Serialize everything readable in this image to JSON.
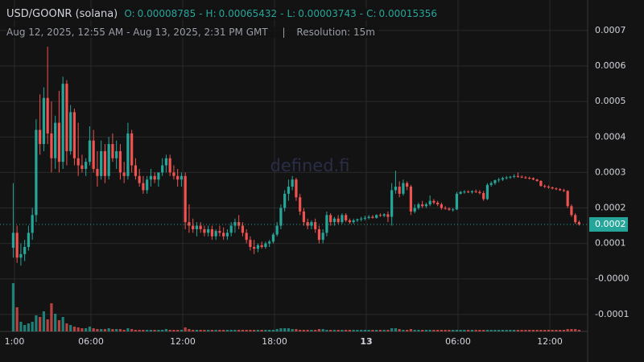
{
  "chart_data": {
    "type": "candlestick",
    "title": "USD/GOONR (solana)",
    "summary": [
      {
        "label": "O:",
        "value": 8.785e-05
      },
      {
        "label": "H:",
        "value": 0.00065432
      },
      {
        "label": "L:",
        "value": 3.743e-05
      },
      {
        "label": "C:",
        "value": 0.00015356
      }
    ],
    "summary_separator": "-",
    "subtitle": "Aug 12, 2025, 12:55 AM - Aug 13, 2025, 2:31 PM GMT",
    "subtitle_separator": "|",
    "resolution": "Resolution: 15m",
    "watermark": "defined.fi",
    "up_color": "#26a69a",
    "down_color": "#ef5350",
    "grid": true,
    "ylim": [
      -0.000148,
      0.000786
    ],
    "yticks": [
      0.0007,
      0.0006,
      0.0005,
      0.0004,
      0.0003,
      0.0002,
      0.0001,
      {
        "value": 0,
        "label": "-0.0000"
      },
      -0.0001
    ],
    "xticks": [
      {
        "value": "2025-08-12T01:00",
        "label": "1:00"
      },
      {
        "value": "2025-08-12T06:00",
        "label": "06:00"
      },
      {
        "value": "2025-08-12T12:00",
        "label": "12:00"
      },
      {
        "value": "2025-08-12T18:00",
        "label": "18:00"
      },
      {
        "value": "2025-08-13T00:00",
        "label": "13"
      },
      {
        "value": "2025-08-13T06:00",
        "label": "06:00"
      },
      {
        "value": "2025-08-13T12:00",
        "label": "12:00"
      }
    ],
    "last_price": {
      "value": 0.00015356,
      "label": "0.0002"
    },
    "x": [
      "2025-08-12T00:55",
      "2025-08-12T01:10",
      "2025-08-12T01:25",
      "2025-08-12T01:40",
      "2025-08-12T01:55",
      "2025-08-12T02:10",
      "2025-08-12T02:25",
      "2025-08-12T02:40",
      "2025-08-12T02:55",
      "2025-08-12T03:10",
      "2025-08-12T03:25",
      "2025-08-12T03:40",
      "2025-08-12T03:55",
      "2025-08-12T04:10",
      "2025-08-12T04:25",
      "2025-08-12T04:40",
      "2025-08-12T04:55",
      "2025-08-12T05:10",
      "2025-08-12T05:25",
      "2025-08-12T05:40",
      "2025-08-12T05:55",
      "2025-08-12T06:10",
      "2025-08-12T06:25",
      "2025-08-12T06:40",
      "2025-08-12T06:55",
      "2025-08-12T07:10",
      "2025-08-12T07:25",
      "2025-08-12T07:40",
      "2025-08-12T07:55",
      "2025-08-12T08:10",
      "2025-08-12T08:25",
      "2025-08-12T08:40",
      "2025-08-12T08:55",
      "2025-08-12T09:10",
      "2025-08-12T09:25",
      "2025-08-12T09:40",
      "2025-08-12T09:55",
      "2025-08-12T10:10",
      "2025-08-12T10:25",
      "2025-08-12T10:40",
      "2025-08-12T10:55",
      "2025-08-12T11:10",
      "2025-08-12T11:25",
      "2025-08-12T11:40",
      "2025-08-12T11:55",
      "2025-08-12T12:10",
      "2025-08-12T12:25",
      "2025-08-12T12:40",
      "2025-08-12T12:55",
      "2025-08-12T13:10",
      "2025-08-12T13:25",
      "2025-08-12T13:40",
      "2025-08-12T13:55",
      "2025-08-12T14:10",
      "2025-08-12T14:25",
      "2025-08-12T14:40",
      "2025-08-12T14:55",
      "2025-08-12T15:10",
      "2025-08-12T15:25",
      "2025-08-12T15:40",
      "2025-08-12T15:55",
      "2025-08-12T16:10",
      "2025-08-12T16:25",
      "2025-08-12T16:40",
      "2025-08-12T16:55",
      "2025-08-12T17:10",
      "2025-08-12T17:25",
      "2025-08-12T17:40",
      "2025-08-12T17:55",
      "2025-08-12T18:10",
      "2025-08-12T18:25",
      "2025-08-12T18:40",
      "2025-08-12T18:55",
      "2025-08-12T19:10",
      "2025-08-12T19:25",
      "2025-08-12T19:40",
      "2025-08-12T19:55",
      "2025-08-12T20:10",
      "2025-08-12T20:25",
      "2025-08-12T20:40",
      "2025-08-12T20:55",
      "2025-08-12T21:10",
      "2025-08-12T21:25",
      "2025-08-12T21:40",
      "2025-08-12T21:55",
      "2025-08-12T22:10",
      "2025-08-12T22:25",
      "2025-08-12T22:40",
      "2025-08-12T22:55",
      "2025-08-12T23:10",
      "2025-08-12T23:25",
      "2025-08-12T23:40",
      "2025-08-12T23:55",
      "2025-08-13T00:10",
      "2025-08-13T00:25",
      "2025-08-13T00:40",
      "2025-08-13T00:55",
      "2025-08-13T01:10",
      "2025-08-13T01:25",
      "2025-08-13T01:40",
      "2025-08-13T01:55",
      "2025-08-13T02:10",
      "2025-08-13T02:25",
      "2025-08-13T02:40",
      "2025-08-13T02:55",
      "2025-08-13T03:10",
      "2025-08-13T03:25",
      "2025-08-13T03:40",
      "2025-08-13T03:55",
      "2025-08-13T04:10",
      "2025-08-13T04:25",
      "2025-08-13T04:40",
      "2025-08-13T04:55",
      "2025-08-13T05:10",
      "2025-08-13T05:25",
      "2025-08-13T05:40",
      "2025-08-13T05:55",
      "2025-08-13T06:10",
      "2025-08-13T06:25",
      "2025-08-13T06:40",
      "2025-08-13T06:55",
      "2025-08-13T07:10",
      "2025-08-13T07:25",
      "2025-08-13T07:40",
      "2025-08-13T07:55",
      "2025-08-13T08:10",
      "2025-08-13T08:25",
      "2025-08-13T08:40",
      "2025-08-13T08:55",
      "2025-08-13T09:10",
      "2025-08-13T09:25",
      "2025-08-13T09:40",
      "2025-08-13T09:55",
      "2025-08-13T10:10",
      "2025-08-13T10:25",
      "2025-08-13T10:40",
      "2025-08-13T10:55",
      "2025-08-13T11:10",
      "2025-08-13T11:25",
      "2025-08-13T11:40",
      "2025-08-13T11:55",
      "2025-08-13T12:10",
      "2025-08-13T12:25",
      "2025-08-13T12:40",
      "2025-08-13T12:55",
      "2025-08-13T13:10",
      "2025-08-13T13:25",
      "2025-08-13T13:40",
      "2025-08-13T13:55"
    ],
    "candles": [
      [
        8.785e-05,
        0.00027,
        6e-05,
        0.00013
      ],
      [
        0.00013,
        0.00015,
        4.5e-05,
        6e-05
      ],
      [
        6e-05,
        0.0001,
        3.743e-05,
        7e-05
      ],
      [
        7e-05,
        0.00011,
        5e-05,
        9e-05
      ],
      [
        9e-05,
        0.00015,
        8e-05,
        0.00013
      ],
      [
        0.00013,
        0.0002,
        0.00011,
        0.00018
      ],
      [
        0.00018,
        0.00045,
        0.00016,
        0.00042
      ],
      [
        0.00042,
        0.00052,
        0.00035,
        0.00038
      ],
      [
        0.00038,
        0.00054,
        0.00036,
        0.00051
      ],
      [
        0.00051,
        0.00065432,
        0.00038,
        0.00041
      ],
      [
        0.00041,
        0.0005,
        0.0003,
        0.00034
      ],
      [
        0.00034,
        0.00046,
        0.00031,
        0.00044
      ],
      [
        0.00044,
        0.00053,
        0.0003,
        0.00033
      ],
      [
        0.00033,
        0.00057,
        0.00031,
        0.00055
      ],
      [
        0.00055,
        0.00056,
        0.00032,
        0.00036
      ],
      [
        0.00036,
        0.00049,
        0.00035,
        0.00047
      ],
      [
        0.00047,
        0.00048,
        0.00032,
        0.00034
      ],
      [
        0.00034,
        0.00044,
        0.00029,
        0.00032
      ],
      [
        0.00032,
        0.00035,
        0.0003,
        0.00031
      ],
      [
        0.00031,
        0.00034,
        0.00029,
        0.00033
      ],
      [
        0.00033,
        0.00043,
        0.00032,
        0.00039
      ],
      [
        0.00039,
        0.00042,
        0.0003,
        0.00031
      ],
      [
        0.00031,
        0.00036,
        0.00026,
        0.00029
      ],
      [
        0.00029,
        0.00039,
        0.00028,
        0.00036
      ],
      [
        0.00036,
        0.00038,
        0.00027,
        0.00029
      ],
      [
        0.00029,
        0.0004,
        0.00028,
        0.00038
      ],
      [
        0.00038,
        0.00041,
        0.00033,
        0.00034
      ],
      [
        0.00034,
        0.00039,
        0.00031,
        0.00036
      ],
      [
        0.00036,
        0.00038,
        0.00028,
        0.0003
      ],
      [
        0.0003,
        0.00033,
        0.00027,
        0.00029
      ],
      [
        0.00029,
        0.00044,
        0.00028,
        0.00041
      ],
      [
        0.00041,
        0.00042,
        0.0003,
        0.00032
      ],
      [
        0.00032,
        0.00034,
        0.00028,
        0.00029
      ],
      [
        0.00029,
        0.00031,
        0.00026,
        0.00027
      ],
      [
        0.00027,
        0.00029,
        0.00024,
        0.00025
      ],
      [
        0.00025,
        0.00029,
        0.00024,
        0.00028
      ],
      [
        0.00028,
        0.00031,
        0.00026,
        0.00029
      ],
      [
        0.00029,
        0.0003,
        0.00027,
        0.00028
      ],
      [
        0.00028,
        0.0003,
        0.00026,
        0.0003
      ],
      [
        0.0003,
        0.00034,
        0.00029,
        0.00032
      ],
      [
        0.00032,
        0.00035,
        0.0003,
        0.00034
      ],
      [
        0.00034,
        0.00035,
        0.00029,
        0.0003
      ],
      [
        0.0003,
        0.00032,
        0.00028,
        0.00029
      ],
      [
        0.00029,
        0.00031,
        0.00026,
        0.00028
      ],
      [
        0.00028,
        0.0003,
        0.00026,
        0.00029
      ],
      [
        0.00029,
        0.0003,
        0.00014,
        0.00016
      ],
      [
        0.00016,
        0.00021,
        0.00013,
        0.00015
      ],
      [
        0.00015,
        0.00017,
        0.00013,
        0.00014
      ],
      [
        0.00014,
        0.00016,
        0.00012,
        0.00015
      ],
      [
        0.00015,
        0.00016,
        0.00013,
        0.00014
      ],
      [
        0.00014,
        0.00015,
        0.00012,
        0.00013
      ],
      [
        0.00013,
        0.00015,
        0.00012,
        0.00014
      ],
      [
        0.00014,
        0.00015,
        0.00011,
        0.00012
      ],
      [
        0.00012,
        0.00014,
        0.00011,
        0.000135
      ],
      [
        0.000135,
        0.00015,
        0.00012,
        0.00013
      ],
      [
        0.00013,
        0.000145,
        0.00011,
        0.00012
      ],
      [
        0.00012,
        0.00014,
        0.00011,
        0.00013
      ],
      [
        0.00013,
        0.00016,
        0.00012,
        0.00015
      ],
      [
        0.00015,
        0.00017,
        0.00013,
        0.00016
      ],
      [
        0.00016,
        0.00018,
        0.00014,
        0.00015
      ],
      [
        0.00015,
        0.00016,
        0.00012,
        0.00013
      ],
      [
        0.00013,
        0.00014,
        0.0001,
        0.00011
      ],
      [
        0.00011,
        0.00012,
        8e-05,
        9e-05
      ],
      [
        9e-05,
        0.00011,
        7e-05,
        8.5e-05
      ],
      [
        8.5e-05,
        0.0001,
        7.5e-05,
        9.5e-05
      ],
      [
        9.5e-05,
        0.000105,
        8.5e-05,
        9e-05
      ],
      [
        9e-05,
        0.000105,
        8.5e-05,
        0.0001
      ],
      [
        0.0001,
        0.00011,
        9e-05,
        0.000105
      ],
      [
        0.000105,
        0.00013,
        0.0001,
        0.000125
      ],
      [
        0.000125,
        0.00016,
        0.00012,
        0.00015
      ],
      [
        0.00015,
        0.00021,
        0.00014,
        0.0002
      ],
      [
        0.0002,
        0.00025,
        0.00019,
        0.00024
      ],
      [
        0.00024,
        0.00028,
        0.00022,
        0.00026
      ],
      [
        0.00026,
        0.00029,
        0.00025,
        0.00028
      ],
      [
        0.00028,
        0.000285,
        0.00022,
        0.00023
      ],
      [
        0.00023,
        0.00024,
        0.00018,
        0.00019
      ],
      [
        0.00019,
        0.0002,
        0.00015,
        0.00016
      ],
      [
        0.00016,
        0.00017,
        0.00014,
        0.00015
      ],
      [
        0.00015,
        0.000165,
        0.00014,
        0.00016
      ],
      [
        0.00016,
        0.00017,
        0.00013,
        0.00014
      ],
      [
        0.00014,
        0.00015,
        0.0001,
        0.00011
      ],
      [
        0.00011,
        0.00014,
        0.0001,
        0.00013
      ],
      [
        0.00013,
        0.00019,
        0.00012,
        0.00018
      ],
      [
        0.00018,
        0.000185,
        0.00015,
        0.00016
      ],
      [
        0.00016,
        0.000175,
        0.00015,
        0.00017
      ],
      [
        0.00017,
        0.00018,
        0.000155,
        0.00016
      ],
      [
        0.00016,
        0.000185,
        0.000155,
        0.00018
      ],
      [
        0.00018,
        0.000185,
        0.00016,
        0.000165
      ],
      [
        0.000165,
        0.00017,
        0.000155,
        0.00016
      ],
      [
        0.00016,
        0.00017,
        0.000155,
        0.000165
      ],
      [
        0.000165,
        0.00017,
        0.00016,
        0.000168
      ],
      [
        0.000168,
        0.000175,
        0.000162,
        0.00017
      ],
      [
        0.00017,
        0.000178,
        0.000165,
        0.000172
      ],
      [
        0.000172,
        0.00018,
        0.000168,
        0.000175
      ],
      [
        0.000175,
        0.00018,
        0.00017,
        0.000172
      ],
      [
        0.000172,
        0.000182,
        0.00017,
        0.00018
      ],
      [
        0.00018,
        0.000185,
        0.000175,
        0.000178
      ],
      [
        0.000178,
        0.000185,
        0.000174,
        0.000182
      ],
      [
        0.000182,
        0.00019,
        0.00016,
        0.000175
      ],
      [
        0.000175,
        0.00027,
        0.00015,
        0.00025
      ],
      [
        0.00025,
        0.000305,
        0.00024,
        0.00026
      ],
      [
        0.00026,
        0.000275,
        0.00023,
        0.00024
      ],
      [
        0.00024,
        0.00028,
        0.000235,
        0.00027
      ],
      [
        0.00027,
        0.000275,
        0.00025,
        0.00026
      ],
      [
        0.00026,
        0.000265,
        0.00018,
        0.00019
      ],
      [
        0.00019,
        0.00021,
        0.000185,
        0.0002
      ],
      [
        0.0002,
        0.000215,
        0.000195,
        0.00021
      ],
      [
        0.00021,
        0.00022,
        0.0002,
        0.000205
      ],
      [
        0.000205,
        0.000215,
        0.0002,
        0.00021
      ],
      [
        0.00021,
        0.000235,
        0.000205,
        0.00022
      ],
      [
        0.00022,
        0.000225,
        0.00021,
        0.000215
      ],
      [
        0.000215,
        0.00022,
        0.000205,
        0.00021
      ],
      [
        0.00021,
        0.000215,
        0.000195,
        0.0002
      ],
      [
        0.0002,
        0.000205,
        0.000195,
        0.000198
      ],
      [
        0.000198,
        0.000202,
        0.000192,
        0.000195
      ],
      [
        0.000195,
        0.0002,
        0.00019,
        0.000196
      ],
      [
        0.000196,
        0.000245,
        0.000194,
        0.00024
      ],
      [
        0.00024,
        0.000248,
        0.000238,
        0.000245
      ],
      [
        0.000245,
        0.00025,
        0.00024,
        0.000246
      ],
      [
        0.000246,
        0.00025,
        0.000242,
        0.000244
      ],
      [
        0.000244,
        0.00025,
        0.00024,
        0.000247
      ],
      [
        0.000247,
        0.000252,
        0.000242,
        0.000245
      ],
      [
        0.000245,
        0.00025,
        0.000238,
        0.000242
      ],
      [
        0.000242,
        0.000248,
        0.00022,
        0.000225
      ],
      [
        0.000225,
        0.00027,
        0.000222,
        0.000265
      ],
      [
        0.000265,
        0.000275,
        0.00026,
        0.00027
      ],
      [
        0.00027,
        0.00028,
        0.000265,
        0.000278
      ],
      [
        0.000278,
        0.000285,
        0.000272,
        0.00028
      ],
      [
        0.00028,
        0.000288,
        0.000276,
        0.000284
      ],
      [
        0.000284,
        0.00029,
        0.00028,
        0.000286
      ],
      [
        0.000286,
        0.00029,
        0.000282,
        0.000288
      ],
      [
        0.000288,
        0.000295,
        0.000284,
        0.00029
      ],
      [
        0.00029,
        0.0003,
        0.000285,
        0.000288
      ],
      [
        0.000288,
        0.000292,
        0.000284,
        0.000286
      ],
      [
        0.000286,
        0.00029,
        0.000282,
        0.000285
      ],
      [
        0.000285,
        0.000288,
        0.00028,
        0.000284
      ],
      [
        0.000284,
        0.000286,
        0.000278,
        0.00028
      ],
      [
        0.00028,
        0.000282,
        0.000274,
        0.000276
      ],
      [
        0.000276,
        0.000278,
        0.00026,
        0.000262
      ],
      [
        0.000262,
        0.000266,
        0.000256,
        0.00026
      ],
      [
        0.00026,
        0.000264,
        0.000254,
        0.000258
      ],
      [
        0.000258,
        0.00026,
        0.000252,
        0.000255
      ],
      [
        0.000255,
        0.000258,
        0.00025,
        0.000253
      ],
      [
        0.000253,
        0.000256,
        0.000248,
        0.00025
      ],
      [
        0.00025,
        0.000254,
        0.000245,
        0.000248
      ],
      [
        0.000248,
        0.00025,
        0.0002,
        0.000205
      ],
      [
        0.000205,
        0.00021,
        0.000175,
        0.00018
      ],
      [
        0.00018,
        0.000185,
        0.000155,
        0.00016
      ],
      [
        0.00016,
        0.000165,
        0.00015,
        0.00015356
      ]
    ],
    "volume": [
      60,
      30,
      12,
      8,
      10,
      12,
      20,
      18,
      25,
      15,
      35,
      22,
      14,
      18,
      10,
      8,
      6,
      5,
      4,
      4,
      6,
      4,
      3,
      3,
      3,
      4,
      3,
      3,
      3,
      2,
      4,
      3,
      2,
      2,
      2,
      2,
      2,
      2,
      2,
      2,
      3,
      2,
      2,
      2,
      2,
      5,
      3,
      2,
      2,
      2,
      2,
      2,
      2,
      2,
      2,
      2,
      2,
      2,
      2,
      2,
      2,
      2,
      2,
      2,
      2,
      2,
      2,
      2,
      2,
      3,
      4,
      4,
      4,
      3,
      3,
      2,
      2,
      2,
      2,
      2,
      3,
      3,
      2,
      2,
      2,
      2,
      2,
      2,
      2,
      2,
      2,
      2,
      2,
      2,
      2,
      2,
      2,
      2,
      2,
      4,
      4,
      3,
      2,
      2,
      3,
      2,
      2,
      2,
      2,
      2,
      2,
      2,
      2,
      2,
      2,
      2,
      2,
      2,
      2,
      2,
      2,
      2,
      2,
      2,
      2,
      2,
      2,
      2,
      2,
      2,
      2,
      2,
      2,
      2,
      2,
      2,
      2,
      2,
      2,
      2,
      2,
      2,
      2,
      2,
      2,
      3,
      3,
      3,
      2
    ]
  }
}
